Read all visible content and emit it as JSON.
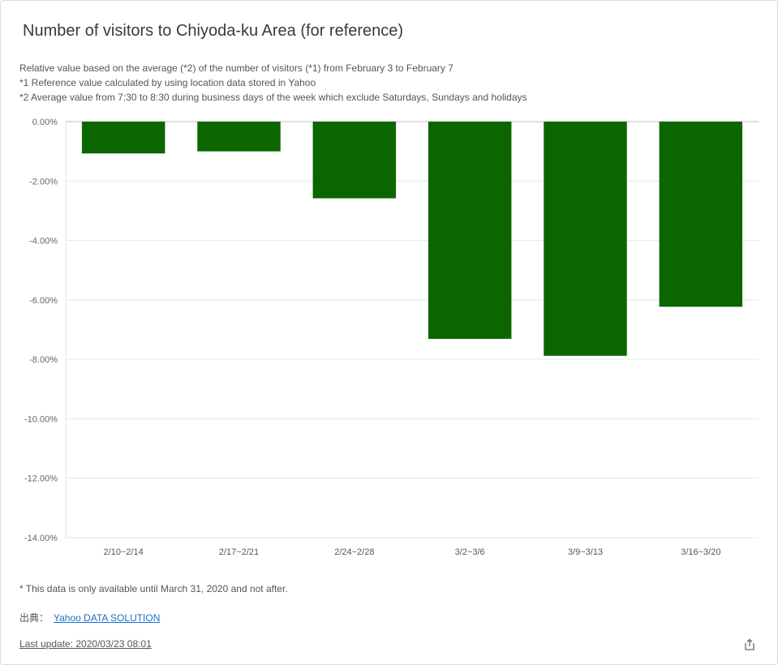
{
  "header": {
    "title": "Number of visitors to Chiyoda-ku Area (for reference)",
    "notes": [
      "Relative value based on the average (*2) of the number of visitors (*1) from February 3 to February 7",
      "*1 Reference value calculated by using location data stored in Yahoo",
      "*2 Average value from 7:30 to 8:30 during business days of the week which exclude Saturdays, Sundays and holidays"
    ]
  },
  "chart_data": {
    "type": "bar",
    "title": "",
    "xlabel": "",
    "ylabel": "",
    "categories": [
      "2/10~2/14",
      "2/17~2/21",
      "2/24~2/28",
      "3/2~3/6",
      "3/9~3/13",
      "3/16~3/20"
    ],
    "values": [
      -1.07,
      -1.0,
      -2.58,
      -7.31,
      -7.88,
      -6.23
    ],
    "ylim": [
      -14,
      0
    ],
    "yticks": [
      0,
      -2,
      -4,
      -6,
      -8,
      -10,
      -12,
      -14
    ],
    "ytick_labels": [
      "0.00%",
      "-2.00%",
      "-4.00%",
      "-6.00%",
      "-8.00%",
      "-10.00%",
      "-12.00%",
      "-14.00%"
    ],
    "bar_color": "#0c6600",
    "grid": true,
    "legend": "none"
  },
  "footer": {
    "availability_note": "* This data is only available until March 31, 2020 and not after.",
    "source_label": "出典：",
    "source_link": "Yahoo DATA SOLUTION",
    "last_update": "Last update: 2020/03/23 08:01",
    "share_icon": "share-icon"
  }
}
